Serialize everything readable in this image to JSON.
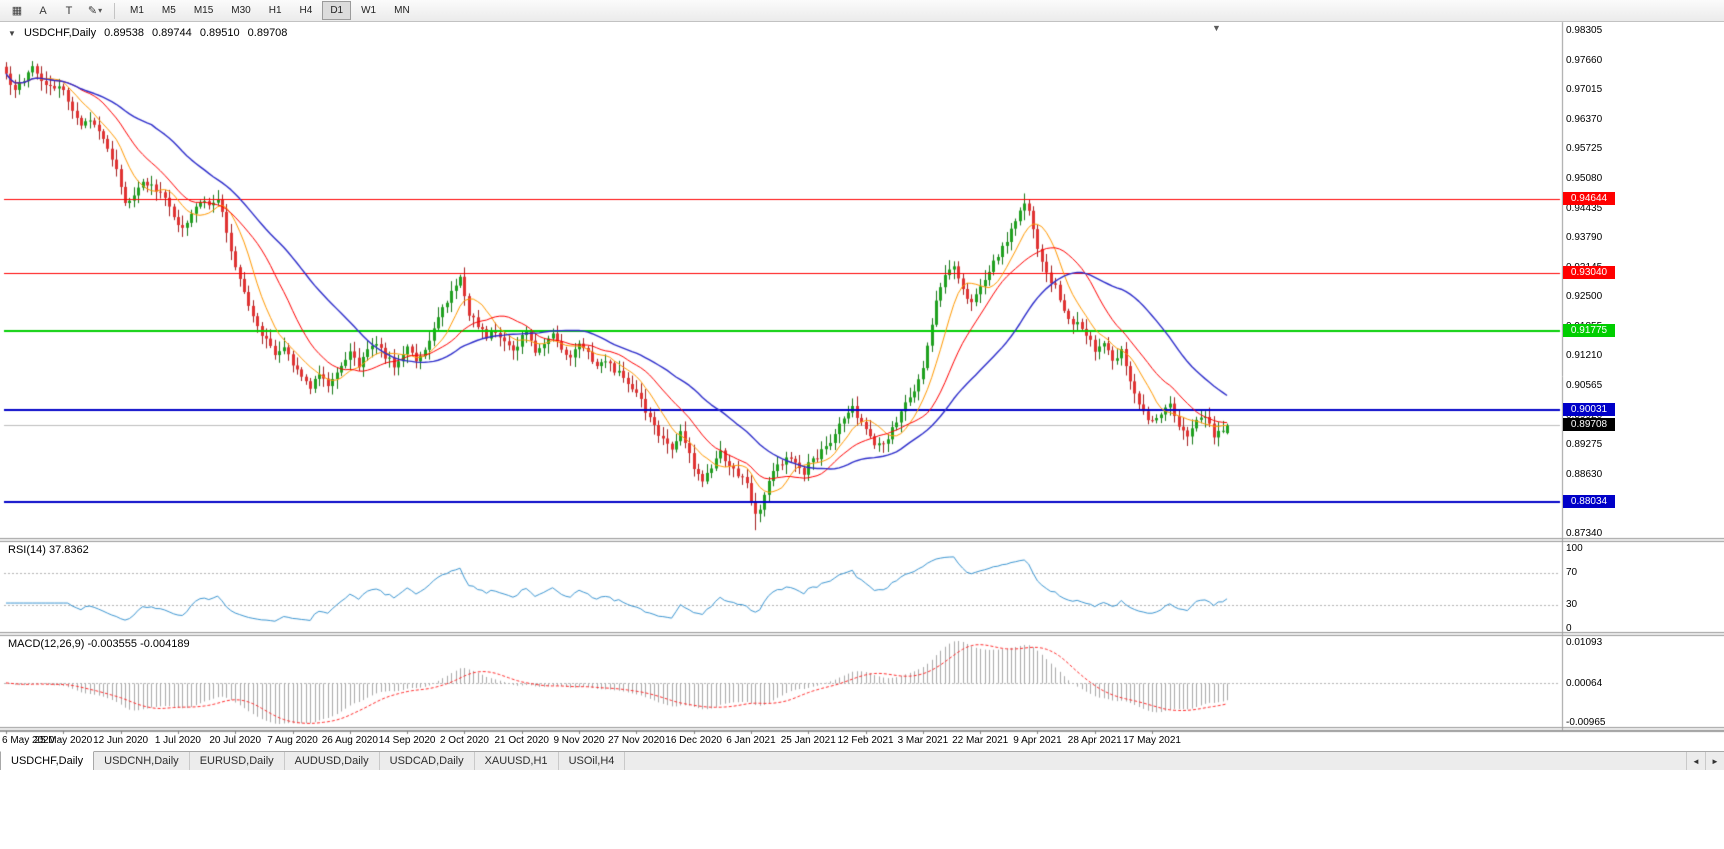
{
  "colors": {
    "up": "#1FA11F",
    "up_wick": "#177917",
    "down": "#E03232",
    "down_wick": "#A32020",
    "ma_fast": "#FF9900",
    "ma_mid": "#FF0000",
    "ma_slow": "#2C2CCB",
    "rsi": "#3C96D2",
    "macd_hist": "#A9A9A9",
    "macd_signal": "#FF2D2D",
    "price_line": "#BDBDBD",
    "grid_dotted": "#B4B4B4",
    "divider": "#9C9C9C",
    "axis_line": "#9C9C9C",
    "tick": "#808080"
  },
  "toolbar": {
    "buttons": [
      {
        "name": "chart-window-button",
        "icon": "window-grid-icon",
        "glyph": "▦",
        "caret": false
      },
      {
        "name": "arrow-tool-button",
        "icon": "arrow-tool-icon",
        "glyph": "A",
        "caret": false
      },
      {
        "name": "text-tool-button",
        "icon": "text-tool-icon",
        "glyph": "T",
        "caret": false
      },
      {
        "name": "draw-tools-button",
        "icon": "pencil-icon",
        "glyph": "✎",
        "caret": true
      }
    ],
    "caret_glyph": "▾",
    "timeframes": [
      "M1",
      "M5",
      "M15",
      "M30",
      "H1",
      "H4",
      "D1",
      "W1",
      "MN"
    ],
    "active_timeframe": "D1"
  },
  "chart": {
    "title": "USDCHF,Daily",
    "ohlc": {
      "open": "0.89538",
      "high": "0.89744",
      "low": "0.89510",
      "close": "0.89708"
    },
    "collapse_glyph": "▼",
    "shift_glyph": "▼",
    "price_axis": [
      "0.98305",
      "0.97660",
      "0.97015",
      "0.96370",
      "0.95725",
      "0.95080",
      "0.94435",
      "0.93790",
      "0.93145",
      "0.92500",
      "0.91855",
      "0.91210",
      "0.90565",
      "0.89920",
      "0.89275",
      "0.88630",
      "0.87985",
      "0.87340"
    ],
    "hlines": [
      {
        "price": "0.94644",
        "value": 0.94644,
        "color": "#FF0000",
        "width": 1
      },
      {
        "price": "0.93040",
        "value": 0.9304,
        "color": "#FF0000",
        "width": 1
      },
      {
        "price": "0.91775",
        "value": 0.91775,
        "color": "#00CE00",
        "width": 2
      },
      {
        "price": "0.90031",
        "value": 0.90031,
        "color": "#0000C8",
        "width": 2
      },
      {
        "price": "0.88034",
        "value": 0.88034,
        "color": "#0000C8",
        "width": 2
      }
    ],
    "current_price": {
      "text": "0.89708",
      "value": 0.89708,
      "tag_bg": "#000000"
    },
    "time_axis": [
      "6 May 2020",
      "25 May 2020",
      "12 Jun 2020",
      "1 Jul 2020",
      "20 Jul 2020",
      "7 Aug 2020",
      "26 Aug 2020",
      "14 Sep 2020",
      "2 Oct 2020",
      "21 Oct 2020",
      "9 Nov 2020",
      "27 Nov 2020",
      "16 Dec 2020",
      "6 Jan 2021",
      "25 Jan 2021",
      "12 Feb 2021",
      "3 Mar 2021",
      "22 Mar 2021",
      "9 Apr 2021",
      "28 Apr 2021",
      "17 May 2021"
    ]
  },
  "rsi": {
    "label": "RSI(14) 37.8362",
    "value": "37.8362",
    "levels": [
      "100",
      "70",
      "30",
      "0"
    ],
    "dotted": [
      70,
      30
    ]
  },
  "macd": {
    "label": "MACD(12,26,9) -0.003555 -0.004189",
    "values": [
      "-0.003555",
      "-0.004189"
    ],
    "levels": [
      "0.01093",
      "0.00064",
      "-0.00965"
    ]
  },
  "tabs": {
    "items": [
      "USDCHF,Daily",
      "USDCNH,Daily",
      "EURUSD,Daily",
      "AUDUSD,Daily",
      "USDCAD,Daily",
      "XAUUSD,H1",
      "USOil,H4"
    ],
    "active": "USDCHF,Daily",
    "scroll_left": "◄",
    "scroll_right": "►"
  },
  "chart_data": {
    "type": "candlestick",
    "symbol": "USDCHF",
    "period": "Daily",
    "bars": 278,
    "y_range": [
      0.8725,
      0.9846
    ],
    "seed": 20210526,
    "noise": 0.0007,
    "wick": 0.0018,
    "rsi_period": 14,
    "macd_periods": [
      12,
      26,
      9
    ],
    "ma_periods": {
      "fast": 8,
      "mid": 17,
      "slow": 34
    },
    "horizontal_levels": [
      0.94644,
      0.9304,
      0.91775,
      0.90031,
      0.88034
    ],
    "last_bar": {
      "open": 0.89538,
      "high": 0.89744,
      "low": 0.8951,
      "close": 0.89708
    },
    "forced_extremes": [
      {
        "i": 103,
        "high": 0.9297
      },
      {
        "i": 170,
        "low": 0.8742
      },
      {
        "i": 231,
        "high": 0.9473
      }
    ],
    "close_anchors": [
      [
        0,
        0.9735
      ],
      [
        2,
        0.9705
      ],
      [
        4,
        0.9722
      ],
      [
        6,
        0.9758
      ],
      [
        8,
        0.972
      ],
      [
        10,
        0.971
      ],
      [
        13,
        0.97
      ],
      [
        15,
        0.9662
      ],
      [
        17,
        0.963
      ],
      [
        19,
        0.9642
      ],
      [
        21,
        0.961
      ],
      [
        23,
        0.9572
      ],
      [
        25,
        0.9528
      ],
      [
        27,
        0.945
      ],
      [
        29,
        0.9472
      ],
      [
        31,
        0.9504
      ],
      [
        33,
        0.9494
      ],
      [
        36,
        0.9465
      ],
      [
        38,
        0.9428
      ],
      [
        40,
        0.9396
      ],
      [
        42,
        0.9438
      ],
      [
        44,
        0.946
      ],
      [
        46,
        0.9446
      ],
      [
        48,
        0.9456
      ],
      [
        49,
        0.9432
      ],
      [
        51,
        0.9348
      ],
      [
        53,
        0.9292
      ],
      [
        55,
        0.9232
      ],
      [
        57,
        0.9186
      ],
      [
        59,
        0.9156
      ],
      [
        61,
        0.9128
      ],
      [
        63,
        0.9142
      ],
      [
        65,
        0.9106
      ],
      [
        67,
        0.9076
      ],
      [
        69,
        0.9056
      ],
      [
        71,
        0.9086
      ],
      [
        73,
        0.9052
      ],
      [
        75,
        0.9092
      ],
      [
        78,
        0.9126
      ],
      [
        80,
        0.9102
      ],
      [
        82,
        0.9136
      ],
      [
        84,
        0.915
      ],
      [
        86,
        0.9122
      ],
      [
        88,
        0.9102
      ],
      [
        90,
        0.9126
      ],
      [
        91,
        0.914
      ],
      [
        93,
        0.9108
      ],
      [
        95,
        0.9132
      ],
      [
        97,
        0.918
      ],
      [
        99,
        0.9226
      ],
      [
        101,
        0.9262
      ],
      [
        103,
        0.9294
      ],
      [
        104,
        0.9252
      ],
      [
        105,
        0.9216
      ],
      [
        107,
        0.9186
      ],
      [
        109,
        0.9166
      ],
      [
        111,
        0.9176
      ],
      [
        113,
        0.9156
      ],
      [
        115,
        0.9132
      ],
      [
        117,
        0.9162
      ],
      [
        118,
        0.9172
      ],
      [
        120,
        0.9128
      ],
      [
        122,
        0.9152
      ],
      [
        124,
        0.9166
      ],
      [
        126,
        0.9132
      ],
      [
        128,
        0.912
      ],
      [
        130,
        0.9146
      ],
      [
        132,
        0.9126
      ],
      [
        134,
        0.9102
      ],
      [
        136,
        0.9116
      ],
      [
        138,
        0.9092
      ],
      [
        140,
        0.9076
      ],
      [
        142,
        0.9056
      ],
      [
        143,
        0.9046
      ],
      [
        145,
        0.9002
      ],
      [
        147,
        0.8966
      ],
      [
        149,
        0.8936
      ],
      [
        151,
        0.8922
      ],
      [
        153,
        0.8956
      ],
      [
        155,
        0.8906
      ],
      [
        156,
        0.8872
      ],
      [
        158,
        0.8852
      ],
      [
        160,
        0.8872
      ],
      [
        162,
        0.8912
      ],
      [
        164,
        0.8886
      ],
      [
        166,
        0.8866
      ],
      [
        168,
        0.8842
      ],
      [
        169,
        0.8802
      ],
      [
        170,
        0.8772
      ],
      [
        171,
        0.8792
      ],
      [
        173,
        0.8852
      ],
      [
        175,
        0.8882
      ],
      [
        177,
        0.8902
      ],
      [
        179,
        0.8886
      ],
      [
        181,
        0.8862
      ],
      [
        182,
        0.8886
      ],
      [
        184,
        0.8902
      ],
      [
        186,
        0.8922
      ],
      [
        188,
        0.8956
      ],
      [
        190,
        0.8986
      ],
      [
        192,
        0.9012
      ],
      [
        193,
        0.8992
      ],
      [
        195,
        0.8962
      ],
      [
        197,
        0.8932
      ],
      [
        199,
        0.893
      ],
      [
        201,
        0.8962
      ],
      [
        203,
        0.9002
      ],
      [
        205,
        0.9032
      ],
      [
        207,
        0.9066
      ],
      [
        208,
        0.9096
      ],
      [
        209,
        0.9142
      ],
      [
        211,
        0.9242
      ],
      [
        213,
        0.9302
      ],
      [
        215,
        0.9322
      ],
      [
        217,
        0.9262
      ],
      [
        219,
        0.9242
      ],
      [
        221,
        0.9276
      ],
      [
        223,
        0.9312
      ],
      [
        225,
        0.9342
      ],
      [
        227,
        0.9372
      ],
      [
        229,
        0.9422
      ],
      [
        231,
        0.9456
      ],
      [
        232,
        0.9442
      ],
      [
        233,
        0.9402
      ],
      [
        234,
        0.9356
      ],
      [
        236,
        0.9302
      ],
      [
        238,
        0.9272
      ],
      [
        240,
        0.9216
      ],
      [
        242,
        0.9196
      ],
      [
        244,
        0.9186
      ],
      [
        246,
        0.9152
      ],
      [
        247,
        0.9126
      ],
      [
        249,
        0.9156
      ],
      [
        251,
        0.9106
      ],
      [
        253,
        0.9136
      ],
      [
        255,
        0.9062
      ],
      [
        257,
        0.9016
      ],
      [
        259,
        0.8986
      ],
      [
        260,
        0.8976
      ],
      [
        262,
        0.8996
      ],
      [
        264,
        0.9012
      ],
      [
        266,
        0.8966
      ],
      [
        268,
        0.8952
      ],
      [
        270,
        0.8976
      ],
      [
        272,
        0.8992
      ],
      [
        274,
        0.8948
      ],
      [
        276,
        0.8958
      ],
      [
        277,
        0.8971
      ]
    ]
  }
}
